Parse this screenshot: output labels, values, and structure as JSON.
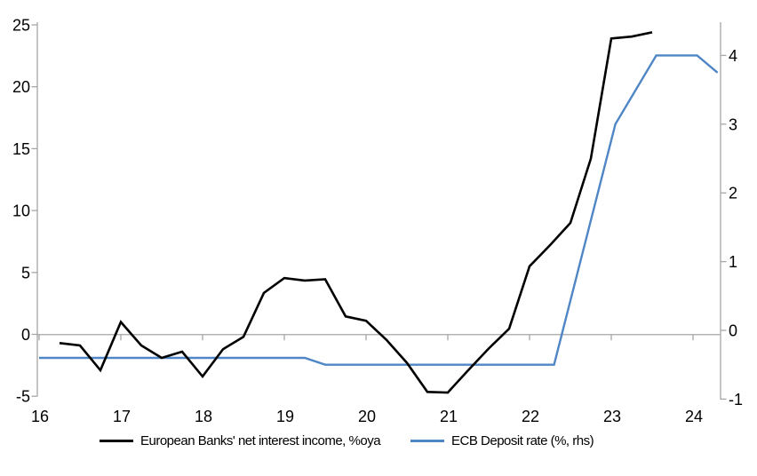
{
  "chart_data": {
    "type": "line",
    "title": "",
    "x_axis": {
      "tick_labels": [
        "16",
        "17",
        "18",
        "19",
        "20",
        "21",
        "22",
        "23",
        "24"
      ],
      "tick_values": [
        16,
        17,
        18,
        19,
        20,
        21,
        22,
        23,
        24
      ],
      "range": [
        16,
        24.35
      ],
      "grid": false
    },
    "left_axis": {
      "ticks": [
        -5,
        0,
        5,
        10,
        15,
        20,
        25
      ],
      "range": [
        -5.0,
        25.2
      ],
      "zero_line": true
    },
    "right_axis": {
      "ticks": [
        -1,
        0,
        1,
        2,
        3,
        4
      ],
      "range": [
        -1.1,
        4.5
      ]
    },
    "legend_position": "bottom",
    "series": [
      {
        "name": "European Banks' net interest income, %oya",
        "axis": "left",
        "color": "#000000",
        "points": [
          [
            16.25,
            -0.7
          ],
          [
            16.5,
            -0.9
          ],
          [
            16.75,
            -2.9
          ],
          [
            17.0,
            1.0
          ],
          [
            17.25,
            -0.9
          ],
          [
            17.5,
            -1.9
          ],
          [
            17.75,
            -1.4
          ],
          [
            18.0,
            -3.4
          ],
          [
            18.25,
            -1.2
          ],
          [
            18.5,
            -0.2
          ],
          [
            18.75,
            3.35
          ],
          [
            19.0,
            4.55
          ],
          [
            19.25,
            4.35
          ],
          [
            19.5,
            4.45
          ],
          [
            19.75,
            1.45
          ],
          [
            20.0,
            1.1
          ],
          [
            20.25,
            -0.45
          ],
          [
            20.5,
            -2.3
          ],
          [
            20.75,
            -4.65
          ],
          [
            21.0,
            -4.7
          ],
          [
            21.25,
            -2.9
          ],
          [
            21.5,
            -1.15
          ],
          [
            21.75,
            0.45
          ],
          [
            22.0,
            5.5
          ],
          [
            22.25,
            7.2
          ],
          [
            22.5,
            9.0
          ],
          [
            22.75,
            14.2
          ],
          [
            23.0,
            23.9
          ],
          [
            23.25,
            24.05
          ],
          [
            23.5,
            24.4
          ]
        ]
      },
      {
        "name": "ECB Deposit rate (%, rhs)",
        "axis": "right",
        "color": "#4F86C5",
        "points": [
          [
            16.0,
            -0.4
          ],
          [
            19.25,
            -0.4
          ],
          [
            19.5,
            -0.5
          ],
          [
            22.3,
            -0.5
          ],
          [
            23.05,
            3.0
          ],
          [
            23.3,
            3.5
          ],
          [
            23.55,
            4.0
          ],
          [
            24.05,
            4.0
          ],
          [
            24.3,
            3.75
          ]
        ]
      }
    ]
  },
  "colors": {
    "axis_line": "#A6A6A6",
    "zero_line": "#B3B3B3",
    "tick_label": "#000000",
    "background": "#FFFFFF"
  }
}
